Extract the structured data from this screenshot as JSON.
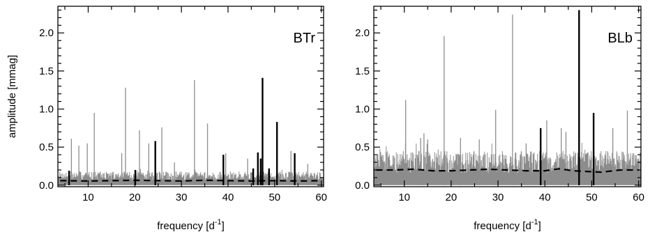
{
  "chart_data": [
    {
      "type": "line",
      "panel_label": "BTr",
      "xlabel": "frequency [d",
      "xlabel_sup": "-1",
      "xlabel_close": "]",
      "ylabel": "amplitude [mmag]",
      "xlim": [
        3.5,
        60.5
      ],
      "ylim": [
        -0.02,
        2.35
      ],
      "xticks": [
        10,
        20,
        30,
        40,
        50,
        60
      ],
      "yticks": [
        0.0,
        0.5,
        1.0,
        1.5,
        2.0
      ],
      "ytick_labels": [
        "0.0",
        "0.5",
        "1.0",
        "1.5",
        "2.0"
      ],
      "noise_band": 0.18,
      "grey_peaks": [
        {
          "x": 6.4,
          "y": 0.61
        },
        {
          "x": 8.0,
          "y": 0.52
        },
        {
          "x": 9.8,
          "y": 0.55
        },
        {
          "x": 11.3,
          "y": 0.95
        },
        {
          "x": 17.2,
          "y": 0.42
        },
        {
          "x": 18.0,
          "y": 1.28
        },
        {
          "x": 21.0,
          "y": 0.72
        },
        {
          "x": 23.0,
          "y": 0.55
        },
        {
          "x": 25.8,
          "y": 0.76
        },
        {
          "x": 28.5,
          "y": 0.3
        },
        {
          "x": 32.8,
          "y": 1.38
        },
        {
          "x": 35.6,
          "y": 0.81
        },
        {
          "x": 39.5,
          "y": 0.42
        },
        {
          "x": 44.2,
          "y": 0.35
        },
        {
          "x": 53.5,
          "y": 0.45
        },
        {
          "x": 57.1,
          "y": 0.28
        }
      ],
      "black_peaks": [
        {
          "x": 5.9,
          "y": 0.19
        },
        {
          "x": 20.1,
          "y": 0.2
        },
        {
          "x": 24.4,
          "y": 0.58
        },
        {
          "x": 39.0,
          "y": 0.4
        },
        {
          "x": 45.4,
          "y": 0.22
        },
        {
          "x": 46.4,
          "y": 0.43
        },
        {
          "x": 47.0,
          "y": 0.35
        },
        {
          "x": 47.4,
          "y": 1.41
        },
        {
          "x": 48.8,
          "y": 0.22
        },
        {
          "x": 50.5,
          "y": 0.83
        },
        {
          "x": 54.3,
          "y": 0.42
        }
      ],
      "dashed_line": {
        "x": [
          4,
          10,
          15,
          20,
          25,
          30,
          35,
          40,
          45,
          50,
          55,
          60
        ],
        "y": [
          0.06,
          0.055,
          0.06,
          0.065,
          0.06,
          0.055,
          0.065,
          0.06,
          0.055,
          0.06,
          0.055,
          0.06
        ]
      }
    },
    {
      "type": "line",
      "panel_label": "BLb",
      "xlabel": "frequency [d",
      "xlabel_sup": "-1",
      "xlabel_close": "]",
      "ylabel": "",
      "xlim": [
        3.5,
        60.5
      ],
      "ylim": [
        -0.02,
        2.35
      ],
      "xticks": [
        10,
        20,
        30,
        40,
        50,
        60
      ],
      "yticks": [
        0.0,
        0.5,
        1.0,
        1.5,
        2.0
      ],
      "ytick_labels": [
        "0.0",
        "0.5",
        "1.0",
        "1.5",
        "2.0"
      ],
      "noise_band": 0.45,
      "grey_peaks": [
        {
          "x": 10.3,
          "y": 1.12
        },
        {
          "x": 13.5,
          "y": 0.62
        },
        {
          "x": 14.2,
          "y": 0.68
        },
        {
          "x": 15.0,
          "y": 0.6
        },
        {
          "x": 18.5,
          "y": 1.96
        },
        {
          "x": 22.0,
          "y": 0.62
        },
        {
          "x": 26.0,
          "y": 0.6
        },
        {
          "x": 29.5,
          "y": 0.99
        },
        {
          "x": 33.1,
          "y": 2.24
        },
        {
          "x": 36.0,
          "y": 0.55
        },
        {
          "x": 40.4,
          "y": 0.85
        },
        {
          "x": 43.5,
          "y": 0.75
        },
        {
          "x": 44.5,
          "y": 0.7
        },
        {
          "x": 54.5,
          "y": 0.75
        },
        {
          "x": 57.6,
          "y": 0.98
        }
      ],
      "black_peaks": [
        {
          "x": 39.1,
          "y": 0.75
        },
        {
          "x": 47.3,
          "y": 2.3
        },
        {
          "x": 50.4,
          "y": 0.95
        }
      ],
      "dashed_line": {
        "x": [
          4,
          8,
          12,
          16,
          20,
          24,
          28,
          32,
          36,
          40,
          43,
          46,
          49,
          52,
          56,
          60
        ],
        "y": [
          0.2,
          0.2,
          0.21,
          0.19,
          0.19,
          0.2,
          0.21,
          0.2,
          0.19,
          0.19,
          0.215,
          0.19,
          0.18,
          0.17,
          0.2,
          0.2
        ]
      }
    }
  ]
}
